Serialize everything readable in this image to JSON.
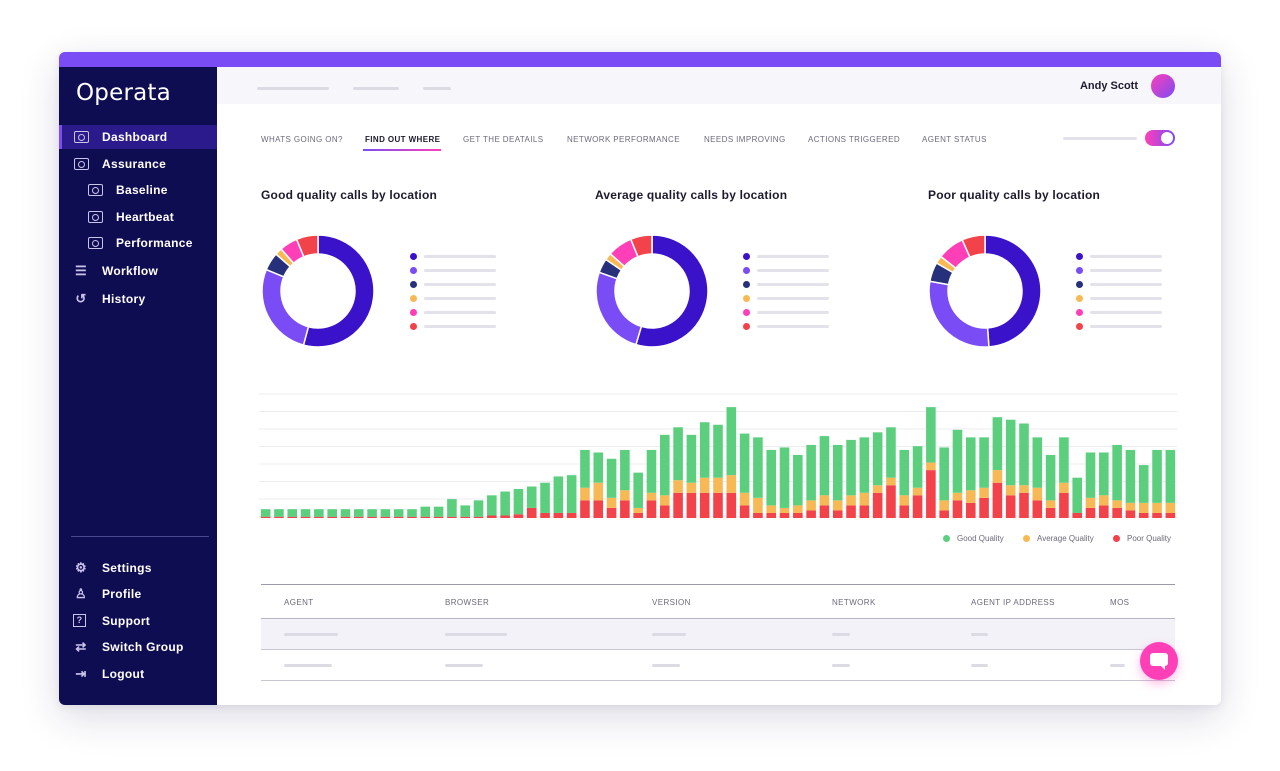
{
  "app": {
    "logo": "Operata"
  },
  "sidebar": {
    "main": [
      {
        "label": "Dashboard",
        "icon": "dashboard-icon",
        "active": true
      },
      {
        "label": "Assurance",
        "icon": "assurance-icon"
      },
      {
        "label": "Baseline",
        "icon": "baseline-icon"
      },
      {
        "label": "Heartbeat",
        "icon": "heartbeat-icon"
      },
      {
        "label": "Performance",
        "icon": "performance-icon"
      },
      {
        "label": "Workflow",
        "icon": "workflow-icon"
      },
      {
        "label": "History",
        "icon": "history-icon"
      }
    ],
    "bottom": [
      {
        "label": "Settings",
        "icon": "settings-icon"
      },
      {
        "label": "Profile",
        "icon": "profile-icon"
      },
      {
        "label": "Support",
        "icon": "support-icon"
      },
      {
        "label": "Switch Group",
        "icon": "switch-group-icon"
      },
      {
        "label": "Logout",
        "icon": "logout-icon"
      }
    ]
  },
  "header": {
    "user_name": "Andy Scott"
  },
  "tabs": [
    {
      "label": "WHATS GOING ON?"
    },
    {
      "label": "FIND OUT WHERE",
      "active": true
    },
    {
      "label": "GET THE DEATAILS"
    },
    {
      "label": "NETWORK PERFORMANCE"
    },
    {
      "label": "NEEDS IMPROVING"
    },
    {
      "label": "ACTIONS TRIGGERED"
    },
    {
      "label": "AGENT STATUS"
    }
  ],
  "colors": {
    "brand_purple": "#7a4cf5",
    "sidebar_navy": "#0f0d52",
    "indigo": "#3a12c9",
    "violet": "#7a4cf5",
    "navy": "#27307a",
    "amber": "#f7b955",
    "magenta": "#ff3fb8",
    "red": "#f2424a",
    "good_green": "#5ccf7f",
    "average_amber": "#f7b955",
    "poor_red": "#f2424a"
  },
  "chart_data": [
    {
      "type": "pie",
      "title": "Good quality calls by location",
      "values": [
        52,
        26,
        5,
        2,
        5,
        6
      ],
      "colors": [
        "#3a12c9",
        "#7a4cf5",
        "#27307a",
        "#f7b955",
        "#ff3fb8",
        "#f2424a"
      ]
    },
    {
      "type": "pie",
      "title": "Average quality calls by location",
      "values": [
        53,
        25,
        4,
        2,
        7,
        6
      ],
      "colors": [
        "#3a12c9",
        "#7a4cf5",
        "#27307a",
        "#f7b955",
        "#ff3fb8",
        "#f2424a"
      ]
    },
    {
      "type": "pie",
      "title": "Poor quality calls by location",
      "values": [
        44,
        26,
        5,
        2,
        7,
        6
      ],
      "colors": [
        "#3a12c9",
        "#7a4cf5",
        "#27307a",
        "#f7b955",
        "#ff3fb8",
        "#f2424a"
      ]
    },
    {
      "type": "bar",
      "stacked": true,
      "ylim": [
        0,
        100
      ],
      "grid": true,
      "legend_position": "bottom-right",
      "series": [
        {
          "name": "Good Quality",
          "values": [
            6,
            6,
            6,
            6,
            6,
            6,
            6,
            6,
            6,
            6,
            6,
            6,
            8,
            8,
            14,
            9,
            13,
            16,
            19,
            20,
            17,
            24,
            29,
            30,
            30,
            24,
            31,
            32,
            28,
            34,
            48,
            42,
            38,
            44,
            42,
            54,
            47,
            48,
            44,
            48,
            40,
            44,
            47,
            44,
            44,
            44,
            42,
            40,
            36,
            33,
            44,
            42,
            50,
            42,
            40,
            42,
            52,
            49,
            40,
            36,
            36,
            28,
            36,
            34,
            44,
            42,
            30,
            42,
            42
          ]
        },
        {
          "name": "Average Quality",
          "values": [
            0,
            0,
            0,
            0,
            0,
            0,
            0,
            0,
            0,
            0,
            0,
            0,
            0,
            0,
            0,
            0,
            0,
            0,
            0,
            0,
            0,
            0,
            0,
            0,
            10,
            14,
            8,
            8,
            4,
            6,
            8,
            10,
            8,
            12,
            12,
            14,
            10,
            12,
            6,
            4,
            6,
            8,
            8,
            8,
            8,
            10,
            6,
            6,
            8,
            6,
            6,
            8,
            6,
            10,
            8,
            10,
            8,
            6,
            10,
            6,
            8,
            0,
            8,
            8,
            6,
            6,
            8,
            8,
            8
          ]
        },
        {
          "name": "Poor Quality",
          "values": [
            1,
            1,
            1,
            1,
            1,
            1,
            1,
            1,
            1,
            1,
            1,
            1,
            1,
            1,
            1,
            1,
            1,
            2,
            2,
            3,
            8,
            4,
            4,
            4,
            14,
            14,
            8,
            14,
            4,
            14,
            10,
            20,
            20,
            20,
            20,
            20,
            10,
            4,
            4,
            4,
            4,
            6,
            10,
            6,
            10,
            10,
            20,
            26,
            10,
            18,
            38,
            6,
            14,
            12,
            16,
            28,
            18,
            20,
            14,
            8,
            20,
            4,
            8,
            10,
            8,
            6,
            4,
            4,
            4
          ]
        }
      ]
    }
  ],
  "table": {
    "columns": [
      "AGENT",
      "BROWSER",
      "VERSION",
      "NETWORK",
      "AGENT IP ADDRESS",
      "MOS"
    ]
  }
}
